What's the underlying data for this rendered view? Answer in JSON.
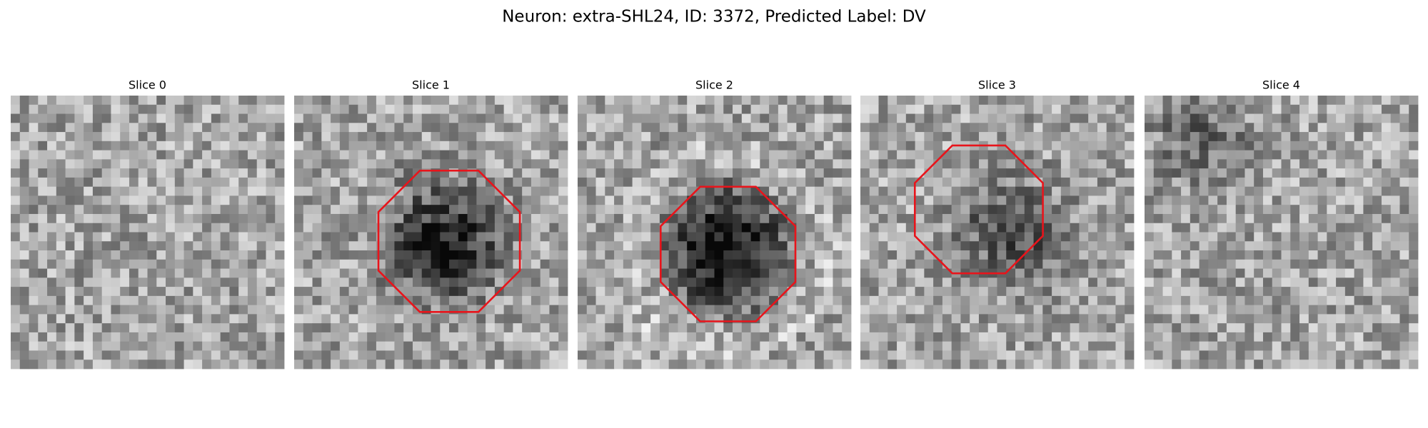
{
  "title": "Neuron: extra-SHL24, ID: 3372, Predicted Label: DV",
  "panels": [
    {
      "label": "Slice 0"
    },
    {
      "label": "Slice 1"
    },
    {
      "label": "Slice 2"
    },
    {
      "label": "Slice 3"
    },
    {
      "label": "Slice 4"
    }
  ]
}
